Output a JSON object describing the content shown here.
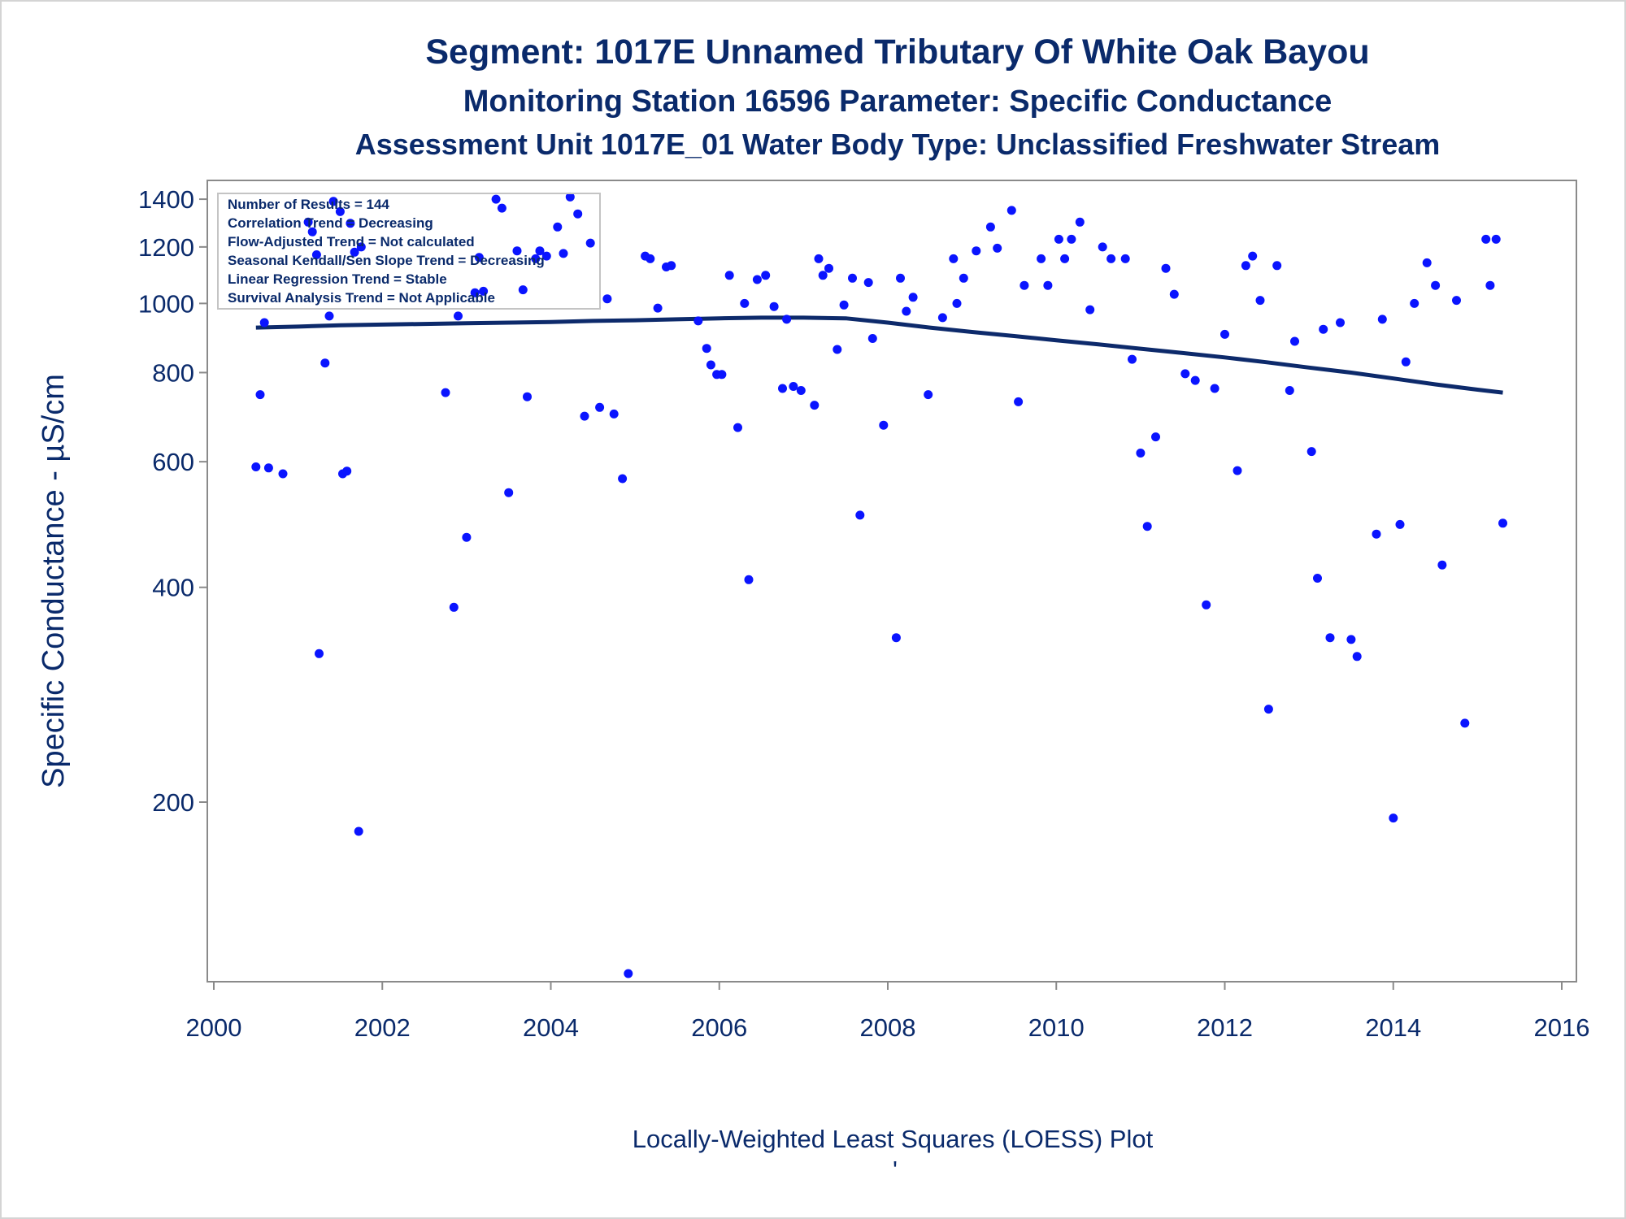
{
  "chart_data": {
    "type": "scatter",
    "title": "Segment: 1017E  Unnamed Tributary Of White Oak Bayou",
    "subtitle1": "Monitoring Station 16596 Parameter: Specific Conductance",
    "subtitle2": "Assessment Unit 1017E_01   Water Body Type: Unclassified Freshwater Stream",
    "ylabel": "Specific Conductance -  µS/cm",
    "footnote": "Locally-Weighted Least Squares (LOESS) Plot",
    "footnote_mark": "'",
    "y_scale": "log",
    "xlim": [
      2000,
      2016
    ],
    "ylim": [
      115,
      1430
    ],
    "x_ticks": [
      "2000",
      "2002",
      "2004",
      "2006",
      "2008",
      "2010",
      "2012",
      "2014",
      "2016"
    ],
    "y_ticks": [
      "200",
      "400",
      "600",
      "800",
      "1000",
      "1200",
      "1400"
    ],
    "legend": {
      "position": "top-left",
      "lines": [
        "Number of Results = 144",
        "Correlation Trend = Decreasing",
        "Flow-Adjusted Trend = Not calculated",
        "Seasonal Kendall/Sen Slope Trend = Decreasing",
        "Linear Regression Trend = Stable",
        "Survival Analysis Trend = Not Applicable"
      ]
    },
    "series": [
      {
        "kind": "points",
        "color": "#0a14ff",
        "points": [
          [
            2000.5,
            590
          ],
          [
            2000.55,
            745
          ],
          [
            2000.6,
            940
          ],
          [
            2000.65,
            588
          ],
          [
            2000.82,
            577
          ],
          [
            2001.12,
            1300
          ],
          [
            2001.17,
            1260
          ],
          [
            2001.22,
            1170
          ],
          [
            2001.25,
            323
          ],
          [
            2001.32,
            825
          ],
          [
            2001.37,
            960
          ],
          [
            2001.42,
            1390
          ],
          [
            2001.5,
            1345
          ],
          [
            2001.53,
            577
          ],
          [
            2001.58,
            582
          ],
          [
            2001.62,
            1295
          ],
          [
            2001.67,
            1180
          ],
          [
            2001.72,
            182
          ],
          [
            2001.75,
            1200
          ],
          [
            2002.75,
            750
          ],
          [
            2002.85,
            375
          ],
          [
            2002.9,
            960
          ],
          [
            2003.0,
            470
          ],
          [
            2003.1,
            1035
          ],
          [
            2003.15,
            1160
          ],
          [
            2003.2,
            1040
          ],
          [
            2003.35,
            1400
          ],
          [
            2003.42,
            1360
          ],
          [
            2003.5,
            543
          ],
          [
            2003.6,
            1185
          ],
          [
            2003.67,
            1045
          ],
          [
            2003.72,
            740
          ],
          [
            2003.82,
            1155
          ],
          [
            2003.87,
            1185
          ],
          [
            2003.95,
            1165
          ],
          [
            2004.08,
            1280
          ],
          [
            2004.15,
            1175
          ],
          [
            2004.23,
            1410
          ],
          [
            2004.32,
            1335
          ],
          [
            2004.4,
            695
          ],
          [
            2004.47,
            1215
          ],
          [
            2004.58,
            715
          ],
          [
            2004.67,
            1015
          ],
          [
            2004.75,
            700
          ],
          [
            2004.85,
            568
          ],
          [
            2004.92,
            115
          ],
          [
            2005.12,
            1165
          ],
          [
            2005.18,
            1155
          ],
          [
            2005.27,
            985
          ],
          [
            2005.37,
            1125
          ],
          [
            2005.43,
            1130
          ],
          [
            2005.75,
            945
          ],
          [
            2005.85,
            865
          ],
          [
            2005.9,
            820
          ],
          [
            2005.97,
            795
          ],
          [
            2006.03,
            795
          ],
          [
            2006.12,
            1095
          ],
          [
            2006.22,
            670
          ],
          [
            2006.3,
            1000
          ],
          [
            2006.35,
            410
          ],
          [
            2006.45,
            1080
          ],
          [
            2006.55,
            1095
          ],
          [
            2006.65,
            990
          ],
          [
            2006.75,
            760
          ],
          [
            2006.8,
            950
          ],
          [
            2006.88,
            765
          ],
          [
            2006.97,
            755
          ],
          [
            2007.13,
            720
          ],
          [
            2007.18,
            1155
          ],
          [
            2007.23,
            1095
          ],
          [
            2007.3,
            1120
          ],
          [
            2007.4,
            862
          ],
          [
            2007.48,
            995
          ],
          [
            2007.58,
            1085
          ],
          [
            2007.67,
            505
          ],
          [
            2007.77,
            1070
          ],
          [
            2007.82,
            893
          ],
          [
            2007.95,
            675
          ],
          [
            2008.1,
            340
          ],
          [
            2008.15,
            1085
          ],
          [
            2008.22,
            975
          ],
          [
            2008.3,
            1020
          ],
          [
            2008.48,
            745
          ],
          [
            2008.65,
            955
          ],
          [
            2008.78,
            1155
          ],
          [
            2008.82,
            1000
          ],
          [
            2008.9,
            1085
          ],
          [
            2009.05,
            1185
          ],
          [
            2009.22,
            1280
          ],
          [
            2009.3,
            1195
          ],
          [
            2009.47,
            1350
          ],
          [
            2009.55,
            728
          ],
          [
            2009.62,
            1060
          ],
          [
            2009.82,
            1155
          ],
          [
            2009.9,
            1060
          ],
          [
            2010.03,
            1230
          ],
          [
            2010.1,
            1155
          ],
          [
            2010.18,
            1230
          ],
          [
            2010.28,
            1300
          ],
          [
            2010.4,
            980
          ],
          [
            2010.55,
            1200
          ],
          [
            2010.65,
            1155
          ],
          [
            2010.82,
            1155
          ],
          [
            2010.9,
            835
          ],
          [
            2011.0,
            617
          ],
          [
            2011.08,
            487
          ],
          [
            2011.18,
            650
          ],
          [
            2011.3,
            1120
          ],
          [
            2011.4,
            1030
          ],
          [
            2011.53,
            797
          ],
          [
            2011.65,
            780
          ],
          [
            2011.78,
            378
          ],
          [
            2011.88,
            760
          ],
          [
            2012.0,
            905
          ],
          [
            2012.15,
            583
          ],
          [
            2012.25,
            1130
          ],
          [
            2012.33,
            1165
          ],
          [
            2012.42,
            1010
          ],
          [
            2012.52,
            270
          ],
          [
            2012.62,
            1130
          ],
          [
            2012.77,
            755
          ],
          [
            2012.83,
            885
          ],
          [
            2013.03,
            620
          ],
          [
            2013.1,
            412
          ],
          [
            2013.17,
            920
          ],
          [
            2013.25,
            340
          ],
          [
            2013.37,
            940
          ],
          [
            2013.5,
            338
          ],
          [
            2013.57,
            320
          ],
          [
            2013.8,
            475
          ],
          [
            2013.87,
            950
          ],
          [
            2014.0,
            190
          ],
          [
            2014.08,
            490
          ],
          [
            2014.15,
            828
          ],
          [
            2014.25,
            1000
          ],
          [
            2014.4,
            1140
          ],
          [
            2014.5,
            1060
          ],
          [
            2014.58,
            430
          ],
          [
            2014.75,
            1010
          ],
          [
            2014.85,
            258
          ],
          [
            2015.1,
            1230
          ],
          [
            2015.15,
            1060
          ],
          [
            2015.22,
            1230
          ],
          [
            2015.3,
            492
          ]
        ]
      },
      {
        "kind": "loess",
        "color": "#0d2a6b",
        "points": [
          [
            2000.5,
            925
          ],
          [
            2001.0,
            928
          ],
          [
            2001.5,
            932
          ],
          [
            2002.0,
            934
          ],
          [
            2002.5,
            936
          ],
          [
            2003.0,
            938
          ],
          [
            2003.5,
            940
          ],
          [
            2004.0,
            942
          ],
          [
            2004.5,
            945
          ],
          [
            2005.0,
            947
          ],
          [
            2005.5,
            950
          ],
          [
            2006.0,
            953
          ],
          [
            2006.5,
            955
          ],
          [
            2007.0,
            955
          ],
          [
            2007.5,
            953
          ],
          [
            2008.0,
            940
          ],
          [
            2008.5,
            925
          ],
          [
            2009.0,
            912
          ],
          [
            2009.5,
            900
          ],
          [
            2010.0,
            888
          ],
          [
            2010.5,
            876
          ],
          [
            2011.0,
            864
          ],
          [
            2011.5,
            852
          ],
          [
            2012.0,
            840
          ],
          [
            2012.5,
            827
          ],
          [
            2013.0,
            813
          ],
          [
            2013.5,
            800
          ],
          [
            2014.0,
            785
          ],
          [
            2014.5,
            770
          ],
          [
            2015.0,
            757
          ],
          [
            2015.3,
            750
          ]
        ]
      }
    ]
  }
}
